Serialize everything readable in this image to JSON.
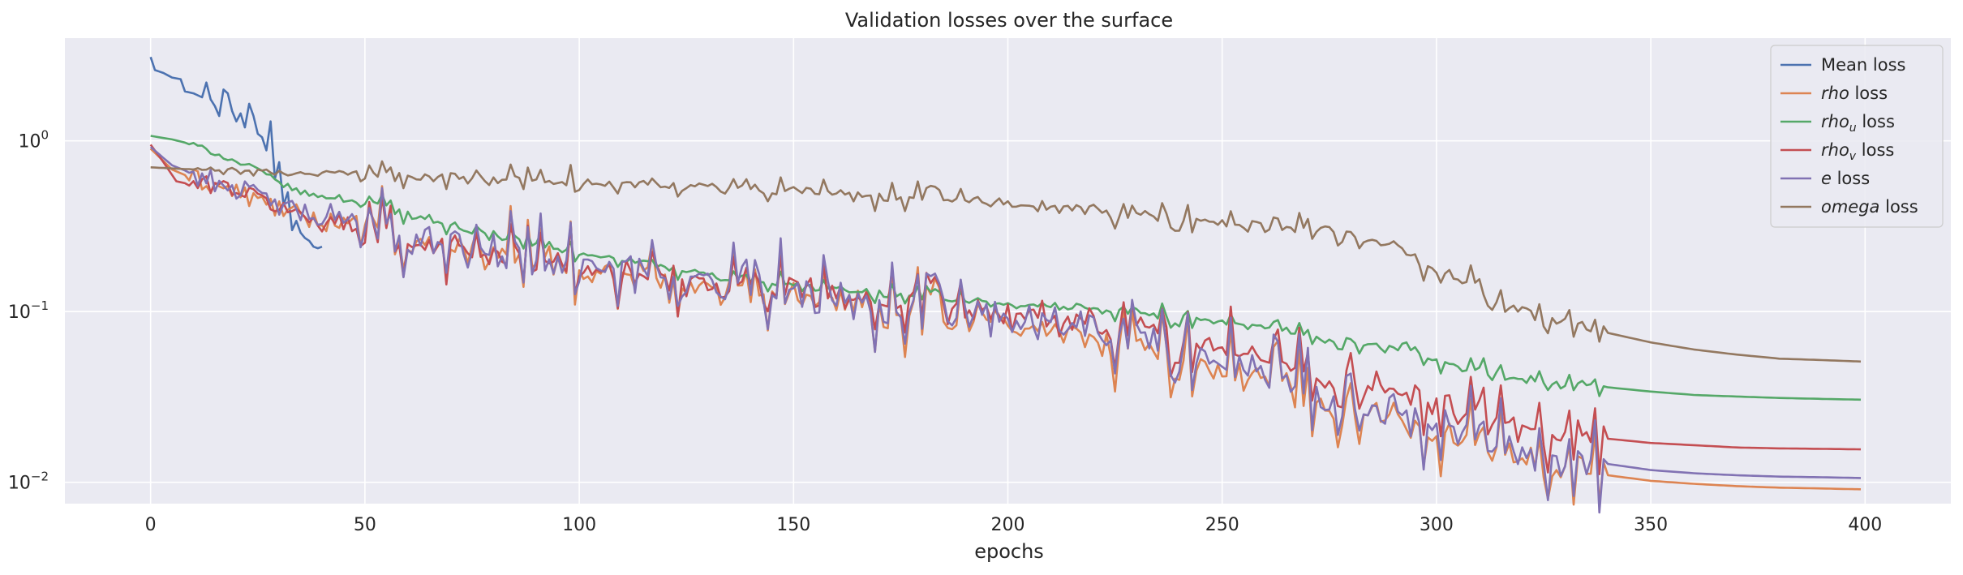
{
  "chart_data": {
    "type": "line",
    "title": "Validation losses over the surface",
    "xlabel": "epochs",
    "ylabel": "",
    "xlim": [
      -20,
      420
    ],
    "ylim": [
      0.0075,
      4.0
    ],
    "yscale": "log",
    "grid": true,
    "legend_position": "top-right",
    "x_ticks": [
      0,
      50,
      100,
      150,
      200,
      250,
      300,
      350,
      400
    ],
    "y_ticks": [
      {
        "value": 0.01,
        "base": "10",
        "exp": "−2"
      },
      {
        "value": 0.1,
        "base": "10",
        "exp": "−1"
      },
      {
        "value": 1,
        "base": "10",
        "exp": "0"
      }
    ],
    "colors": {
      "background": "#eaeaf2",
      "grid": "#ffffff",
      "text": "#262626"
    },
    "series": [
      {
        "name": "Mean loss",
        "name_parts": [
          {
            "t": "Mean loss",
            "s": "normal"
          }
        ],
        "color": "#4c72b0",
        "x_start": 0,
        "x_end": 40,
        "points": [
          [
            0,
            3.1
          ],
          [
            1,
            2.6
          ],
          [
            3,
            2.5
          ],
          [
            5,
            2.35
          ],
          [
            7,
            2.3
          ],
          [
            8,
            1.95
          ],
          [
            10,
            1.9
          ],
          [
            12,
            1.8
          ],
          [
            13,
            2.2
          ],
          [
            14,
            1.75
          ],
          [
            15,
            1.6
          ],
          [
            16,
            1.4
          ],
          [
            17,
            2.0
          ],
          [
            18,
            1.9
          ],
          [
            19,
            1.5
          ],
          [
            20,
            1.3
          ],
          [
            21,
            1.45
          ],
          [
            22,
            1.2
          ],
          [
            23,
            1.65
          ],
          [
            24,
            1.4
          ],
          [
            25,
            1.1
          ],
          [
            26,
            1.05
          ],
          [
            27,
            0.88
          ],
          [
            28,
            1.3
          ],
          [
            29,
            0.6
          ],
          [
            30,
            0.75
          ],
          [
            31,
            0.42
          ],
          [
            32,
            0.5
          ],
          [
            33,
            0.3
          ],
          [
            34,
            0.34
          ],
          [
            35,
            0.29
          ],
          [
            36,
            0.27
          ],
          [
            37,
            0.26
          ],
          [
            38,
            0.24
          ],
          [
            39,
            0.235
          ],
          [
            40,
            0.24
          ]
        ]
      },
      {
        "name": "rho loss",
        "name_parts": [
          {
            "t": "rho",
            "s": "italic"
          },
          {
            "t": " loss",
            "s": "normal"
          }
        ],
        "color": "#dd8452",
        "x_start": 0,
        "x_end": 399,
        "points": [
          [
            0,
            0.9
          ],
          [
            5,
            0.68
          ],
          [
            10,
            0.6
          ],
          [
            20,
            0.5
          ],
          [
            30,
            0.4
          ],
          [
            40,
            0.33
          ],
          [
            50,
            0.29
          ],
          [
            60,
            0.26
          ],
          [
            70,
            0.24
          ],
          [
            80,
            0.22
          ],
          [
            90,
            0.2
          ],
          [
            100,
            0.18
          ],
          [
            110,
            0.165
          ],
          [
            120,
            0.15
          ],
          [
            130,
            0.14
          ],
          [
            140,
            0.13
          ],
          [
            150,
            0.12
          ],
          [
            160,
            0.115
          ],
          [
            170,
            0.105
          ],
          [
            180,
            0.095
          ],
          [
            190,
            0.09
          ],
          [
            200,
            0.085
          ],
          [
            210,
            0.08
          ],
          [
            220,
            0.07
          ],
          [
            230,
            0.062
          ],
          [
            240,
            0.054
          ],
          [
            250,
            0.047
          ],
          [
            260,
            0.04
          ],
          [
            270,
            0.033
          ],
          [
            280,
            0.028
          ],
          [
            290,
            0.024
          ],
          [
            293,
            0.022
          ],
          [
            300,
            0.019
          ],
          [
            305,
            0.018
          ],
          [
            311,
            0.02
          ],
          [
            312,
            0.015
          ],
          [
            320,
            0.0135
          ],
          [
            330,
            0.0125
          ],
          [
            340,
            0.011
          ],
          [
            350,
            0.0102
          ],
          [
            360,
            0.0098
          ],
          [
            370,
            0.0095
          ],
          [
            380,
            0.0093
          ],
          [
            390,
            0.0092
          ],
          [
            399,
            0.0091
          ]
        ],
        "noise": 0.34
      },
      {
        "name": "rho_u loss",
        "name_parts": [
          {
            "t": "rho",
            "s": "italic"
          },
          {
            "t": "u",
            "s": "sub"
          },
          {
            "t": " loss",
            "s": "normal"
          }
        ],
        "color": "#55a868",
        "x_start": 0,
        "x_end": 399,
        "points": [
          [
            0,
            1.07
          ],
          [
            5,
            1.02
          ],
          [
            10,
            0.95
          ],
          [
            15,
            0.85
          ],
          [
            20,
            0.75
          ],
          [
            25,
            0.68
          ],
          [
            30,
            0.57
          ],
          [
            35,
            0.5
          ],
          [
            40,
            0.47
          ],
          [
            50,
            0.43
          ],
          [
            60,
            0.38
          ],
          [
            70,
            0.32
          ],
          [
            80,
            0.28
          ],
          [
            90,
            0.25
          ],
          [
            100,
            0.22
          ],
          [
            110,
            0.2
          ],
          [
            120,
            0.18
          ],
          [
            130,
            0.165
          ],
          [
            140,
            0.15
          ],
          [
            150,
            0.14
          ],
          [
            160,
            0.135
          ],
          [
            170,
            0.128
          ],
          [
            180,
            0.12
          ],
          [
            190,
            0.115
          ],
          [
            200,
            0.11
          ],
          [
            210,
            0.107
          ],
          [
            220,
            0.103
          ],
          [
            230,
            0.098
          ],
          [
            240,
            0.093
          ],
          [
            250,
            0.087
          ],
          [
            260,
            0.08
          ],
          [
            270,
            0.072
          ],
          [
            280,
            0.065
          ],
          [
            290,
            0.06
          ],
          [
            293,
            0.065
          ],
          [
            300,
            0.05
          ],
          [
            310,
            0.046
          ],
          [
            311,
            0.054
          ],
          [
            312,
            0.042
          ],
          [
            320,
            0.04
          ],
          [
            330,
            0.038
          ],
          [
            340,
            0.036
          ],
          [
            350,
            0.034
          ],
          [
            360,
            0.0325
          ],
          [
            370,
            0.0318
          ],
          [
            380,
            0.0312
          ],
          [
            390,
            0.0308
          ],
          [
            399,
            0.0305
          ]
        ],
        "noise": 0.09
      },
      {
        "name": "rho_v loss",
        "name_parts": [
          {
            "t": "rho",
            "s": "italic"
          },
          {
            "t": "v",
            "s": "sub"
          },
          {
            "t": " loss",
            "s": "normal"
          }
        ],
        "color": "#c44e52",
        "x_start": 0,
        "x_end": 399,
        "points": [
          [
            0,
            0.95
          ],
          [
            3,
            0.75
          ],
          [
            6,
            0.58
          ],
          [
            10,
            0.55
          ],
          [
            15,
            0.56
          ],
          [
            20,
            0.52
          ],
          [
            30,
            0.41
          ],
          [
            40,
            0.33
          ],
          [
            50,
            0.29
          ],
          [
            60,
            0.26
          ],
          [
            70,
            0.24
          ],
          [
            80,
            0.22
          ],
          [
            90,
            0.2
          ],
          [
            100,
            0.185
          ],
          [
            110,
            0.17
          ],
          [
            120,
            0.158
          ],
          [
            130,
            0.145
          ],
          [
            140,
            0.135
          ],
          [
            150,
            0.128
          ],
          [
            160,
            0.122
          ],
          [
            170,
            0.115
          ],
          [
            180,
            0.105
          ],
          [
            190,
            0.1
          ],
          [
            200,
            0.095
          ],
          [
            210,
            0.09
          ],
          [
            220,
            0.085
          ],
          [
            230,
            0.078
          ],
          [
            240,
            0.07
          ],
          [
            250,
            0.062
          ],
          [
            260,
            0.054
          ],
          [
            270,
            0.046
          ],
          [
            280,
            0.04
          ],
          [
            290,
            0.035
          ],
          [
            293,
            0.036
          ],
          [
            300,
            0.028
          ],
          [
            310,
            0.026
          ],
          [
            311,
            0.032
          ],
          [
            312,
            0.022
          ],
          [
            320,
            0.021
          ],
          [
            330,
            0.0195
          ],
          [
            340,
            0.018
          ],
          [
            350,
            0.017
          ],
          [
            360,
            0.0165
          ],
          [
            370,
            0.016
          ],
          [
            380,
            0.0158
          ],
          [
            390,
            0.0157
          ],
          [
            399,
            0.0156
          ]
        ],
        "noise": 0.3
      },
      {
        "name": "e loss",
        "name_parts": [
          {
            "t": "e",
            "s": "italic"
          },
          {
            "t": " loss",
            "s": "normal"
          }
        ],
        "color": "#8172b3",
        "x_start": 0,
        "x_end": 399,
        "points": [
          [
            0,
            0.92
          ],
          [
            5,
            0.72
          ],
          [
            10,
            0.64
          ],
          [
            20,
            0.53
          ],
          [
            30,
            0.42
          ],
          [
            40,
            0.34
          ],
          [
            50,
            0.3
          ],
          [
            60,
            0.27
          ],
          [
            70,
            0.25
          ],
          [
            80,
            0.23
          ],
          [
            90,
            0.21
          ],
          [
            100,
            0.19
          ],
          [
            110,
            0.175
          ],
          [
            120,
            0.16
          ],
          [
            130,
            0.148
          ],
          [
            140,
            0.138
          ],
          [
            150,
            0.128
          ],
          [
            160,
            0.122
          ],
          [
            170,
            0.112
          ],
          [
            180,
            0.102
          ],
          [
            190,
            0.097
          ],
          [
            200,
            0.092
          ],
          [
            210,
            0.087
          ],
          [
            220,
            0.077
          ],
          [
            230,
            0.068
          ],
          [
            240,
            0.06
          ],
          [
            250,
            0.052
          ],
          [
            260,
            0.045
          ],
          [
            270,
            0.037
          ],
          [
            280,
            0.031
          ],
          [
            290,
            0.027
          ],
          [
            293,
            0.025
          ],
          [
            300,
            0.021
          ],
          [
            305,
            0.02
          ],
          [
            311,
            0.022
          ],
          [
            312,
            0.017
          ],
          [
            320,
            0.0155
          ],
          [
            330,
            0.014
          ],
          [
            340,
            0.0128
          ],
          [
            350,
            0.0118
          ],
          [
            360,
            0.0113
          ],
          [
            370,
            0.011
          ],
          [
            380,
            0.0108
          ],
          [
            390,
            0.0107
          ],
          [
            399,
            0.0106
          ]
        ],
        "noise": 0.36
      },
      {
        "name": "omega loss",
        "name_parts": [
          {
            "t": "omega",
            "s": "italic"
          },
          {
            "t": " loss",
            "s": "normal"
          }
        ],
        "color": "#937860",
        "x_start": 0,
        "x_end": 399,
        "points": [
          [
            0,
            0.7
          ],
          [
            20,
            0.66
          ],
          [
            40,
            0.64
          ],
          [
            60,
            0.62
          ],
          [
            80,
            0.6
          ],
          [
            100,
            0.57
          ],
          [
            120,
            0.55
          ],
          [
            140,
            0.52
          ],
          [
            150,
            0.5
          ],
          [
            160,
            0.48
          ],
          [
            170,
            0.47
          ],
          [
            180,
            0.46
          ],
          [
            190,
            0.45
          ],
          [
            200,
            0.43
          ],
          [
            210,
            0.41
          ],
          [
            220,
            0.39
          ],
          [
            230,
            0.37
          ],
          [
            240,
            0.35
          ],
          [
            250,
            0.33
          ],
          [
            260,
            0.31
          ],
          [
            270,
            0.3
          ],
          [
            275,
            0.32
          ],
          [
            280,
            0.27
          ],
          [
            290,
            0.25
          ],
          [
            300,
            0.17
          ],
          [
            310,
            0.15
          ],
          [
            312,
            0.11
          ],
          [
            320,
            0.105
          ],
          [
            325,
            0.09
          ],
          [
            330,
            0.09
          ],
          [
            340,
            0.075
          ],
          [
            350,
            0.066
          ],
          [
            360,
            0.06
          ],
          [
            370,
            0.056
          ],
          [
            380,
            0.053
          ],
          [
            390,
            0.052
          ],
          [
            399,
            0.051
          ]
        ],
        "noise": 0.12
      }
    ]
  }
}
